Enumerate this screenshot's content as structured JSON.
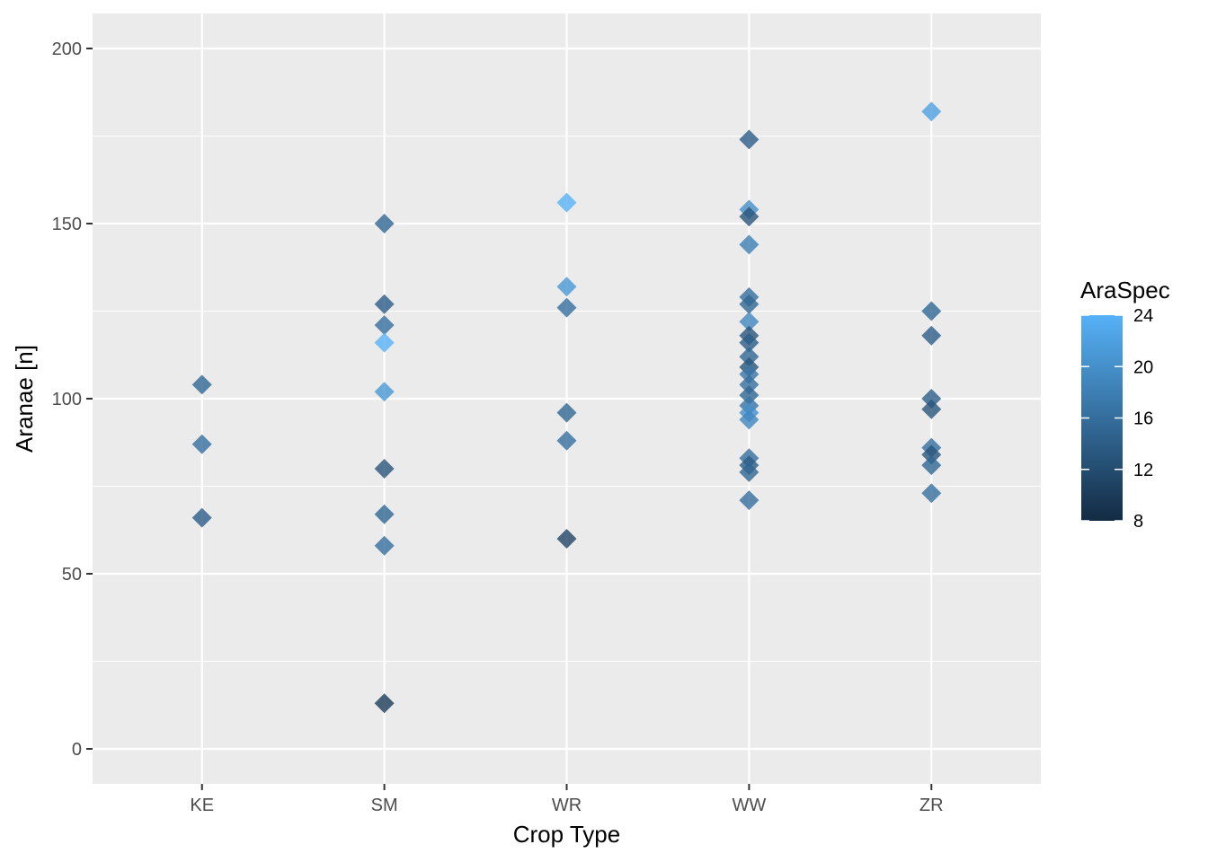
{
  "chart_data": {
    "type": "scatter",
    "title": "",
    "xlabel": "Crop Type",
    "ylabel": "Aranae [n]",
    "categories": [
      "KE",
      "SM",
      "WR",
      "WW",
      "ZR"
    ],
    "ylim": [
      -10,
      210
    ],
    "yticks": [
      0,
      50,
      100,
      150,
      200
    ],
    "grid": true,
    "marker": "diamond",
    "color_scale": {
      "title": "AraSpec",
      "min": 8,
      "max": 24,
      "ticks": [
        8,
        12,
        16,
        20,
        24
      ],
      "low_color": "#132B43",
      "high_color": "#56B1F7"
    },
    "legend_position": "right",
    "points": [
      {
        "x": "KE",
        "y": 104,
        "c": 15
      },
      {
        "x": "KE",
        "y": 87,
        "c": 16
      },
      {
        "x": "KE",
        "y": 66,
        "c": 14
      },
      {
        "x": "SM",
        "y": 150,
        "c": 15
      },
      {
        "x": "SM",
        "y": 127,
        "c": 14
      },
      {
        "x": "SM",
        "y": 121,
        "c": 16
      },
      {
        "x": "SM",
        "y": 116,
        "c": 24
      },
      {
        "x": "SM",
        "y": 102,
        "c": 21
      },
      {
        "x": "SM",
        "y": 80,
        "c": 13
      },
      {
        "x": "SM",
        "y": 67,
        "c": 15
      },
      {
        "x": "SM",
        "y": 58,
        "c": 16
      },
      {
        "x": "SM",
        "y": 13,
        "c": 10
      },
      {
        "x": "WR",
        "y": 156,
        "c": 24
      },
      {
        "x": "WR",
        "y": 132,
        "c": 21
      },
      {
        "x": "WR",
        "y": 126,
        "c": 16
      },
      {
        "x": "WR",
        "y": 96,
        "c": 15
      },
      {
        "x": "WR",
        "y": 88,
        "c": 16
      },
      {
        "x": "WR",
        "y": 60,
        "c": 11
      },
      {
        "x": "WW",
        "y": 174,
        "c": 14
      },
      {
        "x": "WW",
        "y": 154,
        "c": 20
      },
      {
        "x": "WW",
        "y": 152,
        "c": 13
      },
      {
        "x": "WW",
        "y": 144,
        "c": 18
      },
      {
        "x": "WW",
        "y": 129,
        "c": 16
      },
      {
        "x": "WW",
        "y": 127,
        "c": 15
      },
      {
        "x": "WW",
        "y": 122,
        "c": 19
      },
      {
        "x": "WW",
        "y": 118,
        "c": 13
      },
      {
        "x": "WW",
        "y": 116,
        "c": 14
      },
      {
        "x": "WW",
        "y": 112,
        "c": 15
      },
      {
        "x": "WW",
        "y": 109,
        "c": 13
      },
      {
        "x": "WW",
        "y": 107,
        "c": 17
      },
      {
        "x": "WW",
        "y": 104,
        "c": 16
      },
      {
        "x": "WW",
        "y": 101,
        "c": 15
      },
      {
        "x": "WW",
        "y": 98,
        "c": 17
      },
      {
        "x": "WW",
        "y": 96,
        "c": 20
      },
      {
        "x": "WW",
        "y": 94,
        "c": 19
      },
      {
        "x": "WW",
        "y": 83,
        "c": 16
      },
      {
        "x": "WW",
        "y": 81,
        "c": 14
      },
      {
        "x": "WW",
        "y": 79,
        "c": 15
      },
      {
        "x": "WW",
        "y": 71,
        "c": 16
      },
      {
        "x": "ZR",
        "y": 182,
        "c": 22
      },
      {
        "x": "ZR",
        "y": 125,
        "c": 15
      },
      {
        "x": "ZR",
        "y": 118,
        "c": 14
      },
      {
        "x": "ZR",
        "y": 100,
        "c": 14
      },
      {
        "x": "ZR",
        "y": 97,
        "c": 13
      },
      {
        "x": "ZR",
        "y": 86,
        "c": 16
      },
      {
        "x": "ZR",
        "y": 84,
        "c": 13
      },
      {
        "x": "ZR",
        "y": 81,
        "c": 15
      },
      {
        "x": "ZR",
        "y": 73,
        "c": 16
      }
    ]
  }
}
